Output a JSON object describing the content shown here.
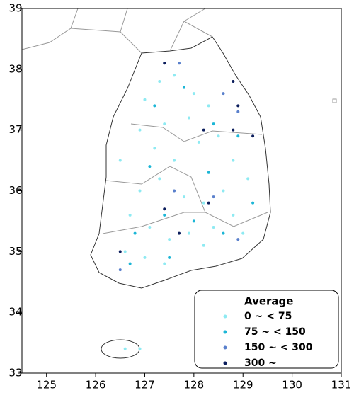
{
  "chart_data": {
    "type": "scatter",
    "xlim": [
      124.5,
      131
    ],
    "xticks": [
      125,
      126,
      127,
      128,
      129,
      130,
      131
    ],
    "ylim": [
      33,
      39
    ],
    "yticks": [
      33,
      34,
      35,
      36,
      37,
      38,
      39
    ],
    "legend_title": "Average",
    "legend": "lower right",
    "series": [
      {
        "name": "0 ~ < 75",
        "color": "#8eeaf2",
        "x": [
          127.0,
          127.3,
          127.6,
          128.0,
          128.3,
          127.9,
          127.4,
          126.9,
          127.2,
          127.6,
          128.1,
          128.5,
          128.8,
          129.1,
          128.6,
          128.2,
          127.8,
          127.3,
          126.9,
          126.7,
          127.1,
          127.5,
          127.9,
          128.4,
          128.8,
          129.0,
          126.6,
          127.0,
          127.4,
          128.2,
          126.5,
          126.6,
          126.9
        ],
        "values": [
          37.5,
          37.8,
          37.9,
          37.6,
          37.4,
          37.2,
          37.1,
          37.0,
          36.7,
          36.5,
          36.8,
          36.9,
          36.5,
          36.2,
          36.0,
          35.8,
          35.9,
          36.2,
          36.0,
          35.6,
          35.4,
          35.2,
          35.3,
          35.4,
          35.6,
          35.3,
          35.0,
          34.9,
          34.8,
          35.1,
          36.5,
          33.4,
          33.4
        ]
      },
      {
        "name": "75 ~ < 150",
        "color": "#1cb6d6",
        "x": [
          127.2,
          127.8,
          128.4,
          127.1,
          126.8,
          127.4,
          128.0,
          128.6,
          129.2,
          128.9,
          127.5,
          126.7,
          128.3
        ],
        "values": [
          37.4,
          37.7,
          37.1,
          36.4,
          35.3,
          35.6,
          35.5,
          35.3,
          35.8,
          36.9,
          34.9,
          34.8,
          36.3
        ]
      },
      {
        "name": "150 ~ < 300",
        "color": "#5a80cc",
        "x": [
          127.7,
          128.6,
          128.9,
          127.6,
          128.9,
          126.5,
          128.4
        ],
        "values": [
          38.1,
          37.6,
          37.3,
          36.0,
          35.2,
          34.7,
          35.9
        ]
      },
      {
        "name": "300 ~",
        "color": "#0b1d5c",
        "x": [
          127.4,
          128.8,
          128.9,
          128.8,
          129.2,
          127.4,
          128.3,
          127.7,
          126.5,
          128.2
        ],
        "values": [
          38.1,
          37.8,
          37.4,
          37.0,
          36.9,
          35.7,
          35.8,
          35.3,
          35.0,
          37.0
        ]
      }
    ]
  }
}
